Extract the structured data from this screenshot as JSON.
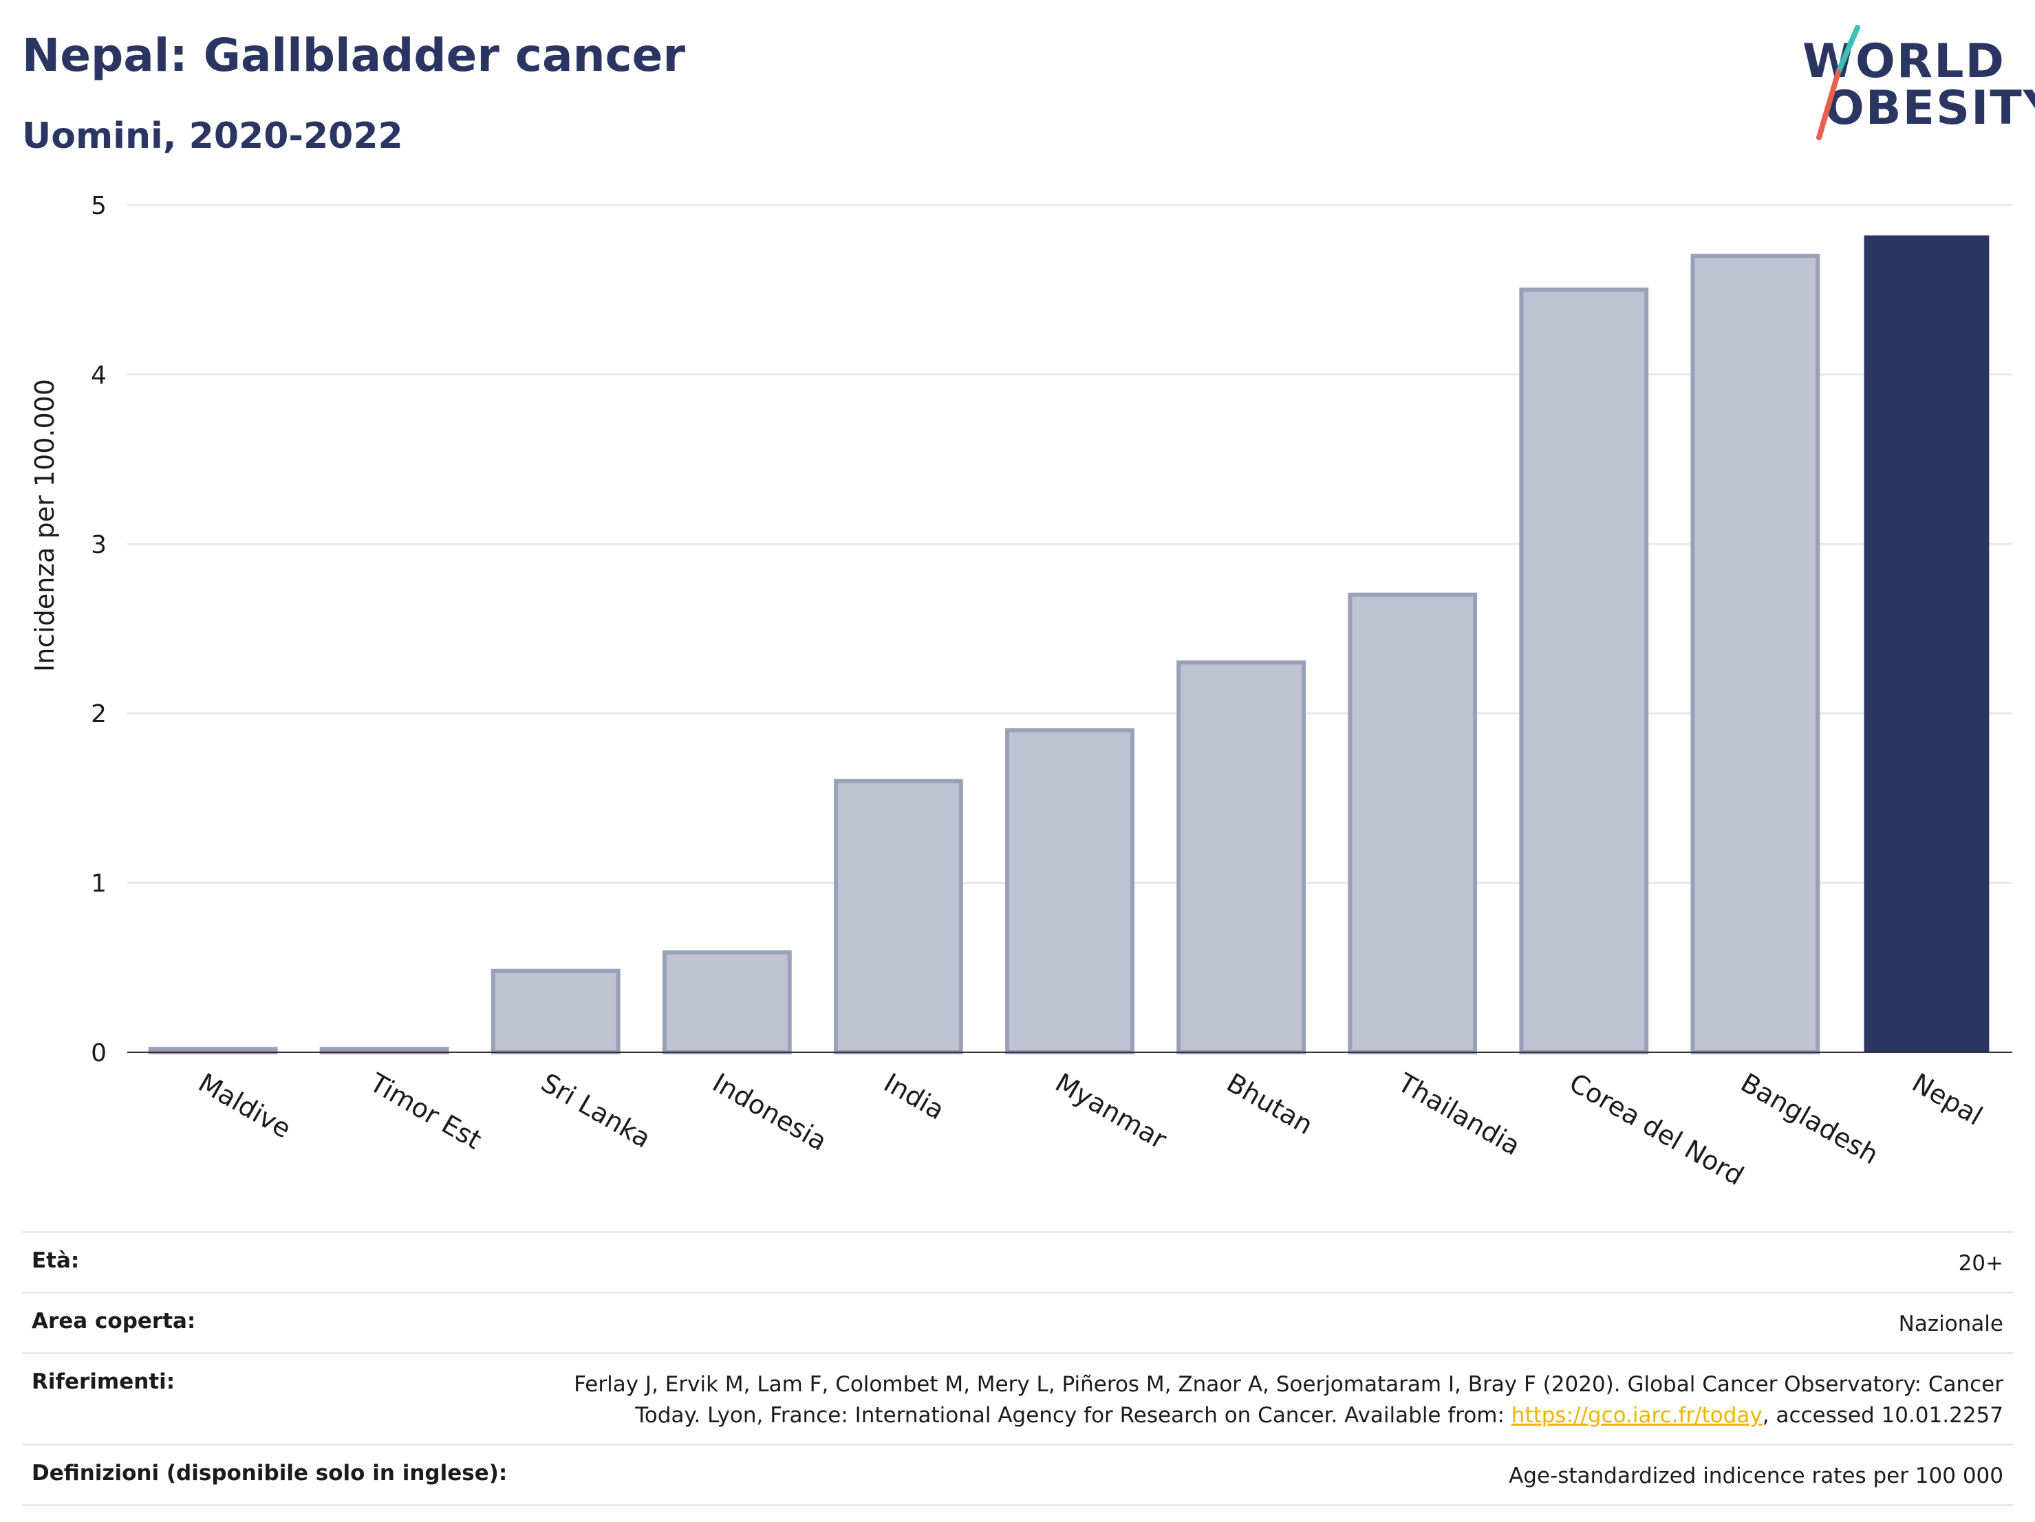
{
  "header": {
    "title": "Nepal: Gallbladder cancer",
    "subtitle": "Uomini, 2020-2022"
  },
  "logo": {
    "line1": "WORLD",
    "line2": "OBESITY"
  },
  "colors": {
    "highlight": "#2b3561",
    "other": "#bfc3d1",
    "other_stroke": "#9aa0b8",
    "accent_teal": "#3cc0b4",
    "accent_red": "#e8604c",
    "link": "#f0b400"
  },
  "chart_data": {
    "type": "bar",
    "ylabel": "Incidenza per 100.000",
    "ylim": [
      0,
      5
    ],
    "yticks": [
      0,
      1,
      2,
      3,
      4,
      5
    ],
    "grid": true,
    "categories": [
      "Maldive",
      "Timor Est",
      "Sri Lanka",
      "Indonesia",
      "India",
      "Myanmar",
      "Bhutan",
      "Thailandia",
      "Corea del Nord",
      "Bangladesh",
      "Nepal"
    ],
    "values": [
      0.02,
      0.02,
      0.48,
      0.59,
      1.6,
      1.9,
      2.3,
      2.7,
      4.5,
      4.7,
      4.82
    ],
    "highlight": "Nepal"
  },
  "info": {
    "eta_label": "Età:",
    "eta_value": "20+",
    "area_label": "Area coperta:",
    "area_value": "Nazionale",
    "rif_label": "Riferimenti:",
    "rif_line1": "Ferlay J, Ervik M, Lam F, Colombet M, Mery L, Piñeros M, Znaor A, Soerjomataram I, Bray F (2020). Global Cancer Observatory: Cancer",
    "rif_line2_pre": "Today. Lyon, France: International Agency for Research on Cancer. Available from: ",
    "rif_link": "https://gco.iarc.fr/today",
    "rif_line2_post": ", accessed 10.01.2257",
    "def_label": "Definizioni (disponibile solo in inglese):",
    "def_value": "Age-standardized indicence rates per 100 000"
  }
}
